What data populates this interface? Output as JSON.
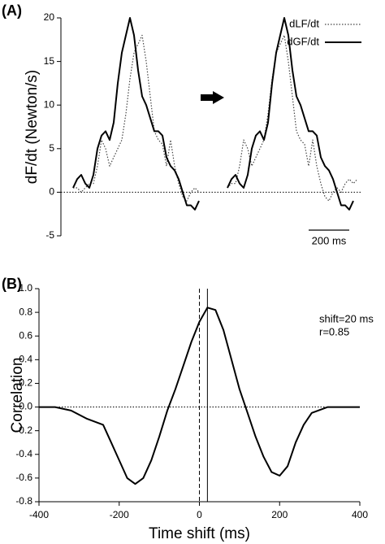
{
  "chart_data": [
    {
      "type": "line",
      "panel_label": "(A)",
      "ylabel": "dF/dt (Newton/s)",
      "xlim": [
        0,
        1480
      ],
      "ylim": [
        -5,
        20
      ],
      "yticks": [
        -5,
        0,
        5,
        10,
        15,
        20
      ],
      "hline": {
        "value": 0,
        "style": "dotted"
      },
      "scale_bar": {
        "value": 200,
        "label": "200 ms"
      },
      "legend": "top-right",
      "x": [
        60,
        80,
        100,
        120,
        140,
        160,
        180,
        200,
        220,
        240,
        260,
        280,
        300,
        320,
        340,
        360,
        380,
        400,
        420,
        440,
        460,
        480,
        500,
        520,
        540,
        560,
        580,
        600,
        620,
        640,
        660,
        680,
        700,
        720,
        740,
        760,
        780,
        800,
        820,
        840,
        860,
        880,
        900,
        920,
        940,
        960,
        980,
        1000,
        1020,
        1040,
        1060,
        1080,
        1100,
        1120,
        1140,
        1160,
        1180,
        1200,
        1220,
        1240,
        1260,
        1280,
        1300,
        1320,
        1340,
        1360,
        1380,
        1400,
        1420,
        1440,
        1460
      ],
      "series": [
        {
          "name": "dLF/dt",
          "color": "#444444",
          "style": "dotted",
          "values": [
            0.5,
            0.5,
            0,
            0.5,
            1,
            1,
            3,
            6,
            5,
            3,
            4,
            5,
            6,
            9,
            13,
            16,
            17,
            18,
            15,
            11,
            7,
            6,
            5.5,
            3,
            6,
            3,
            1,
            -0.5,
            -1,
            0,
            0.5,
            0,
            null,
            null,
            null,
            null,
            null,
            null,
            0.5,
            1,
            1,
            3,
            6,
            5,
            3,
            4,
            5,
            6,
            9,
            13,
            16,
            17,
            18,
            15,
            11,
            7,
            6,
            5.5,
            3,
            6,
            3,
            1,
            -0.5,
            -1,
            0,
            0.5,
            0,
            1,
            1.5,
            1,
            1.5
          ]
        },
        {
          "name": "dGF/dt",
          "color": "#000000",
          "style": "solid",
          "values": [
            0.5,
            1.5,
            2,
            1,
            0.5,
            2,
            5,
            6.5,
            7,
            6,
            8,
            12.5,
            16,
            18,
            20,
            18,
            14,
            11,
            10,
            8.5,
            7,
            7,
            6.5,
            4,
            3,
            2.5,
            1.5,
            0,
            -1.5,
            -1.5,
            -2,
            -1,
            null,
            null,
            null,
            null,
            null,
            null,
            0.5,
            1.5,
            2,
            1,
            0.5,
            2,
            5,
            6.5,
            7,
            6,
            8,
            12.5,
            16,
            18,
            20,
            18,
            14,
            11,
            10,
            8.5,
            7,
            7,
            6.5,
            4,
            3,
            2.5,
            1.5,
            0,
            -1.5,
            -1.5,
            -2,
            -1,
            null
          ]
        }
      ]
    },
    {
      "type": "line",
      "panel_label": "(B)",
      "ylabel": "Correlation",
      "xlabel": "Time shift (ms)",
      "xlim": [
        -400,
        400
      ],
      "xticks": [
        -400,
        -200,
        0,
        200,
        400
      ],
      "ylim": [
        -0.8,
        1.0
      ],
      "yticks": [
        {
          "value": 1,
          "label": "1.0"
        },
        0.8,
        0.6,
        0.4,
        0.2,
        {
          "value": 0,
          "label": "0.0"
        },
        -0.2,
        -0.4,
        -0.6,
        -0.8
      ],
      "hline": {
        "value": 0,
        "style": "dotted"
      },
      "vlines": [
        {
          "value": 0,
          "style": "dashed"
        },
        {
          "value": 20,
          "style": "solid"
        }
      ],
      "annotations": [
        "shift=20 ms",
        "r=0.85"
      ],
      "x": [
        -400,
        -360,
        -320,
        -280,
        -240,
        -220,
        -200,
        -180,
        -160,
        -140,
        -120,
        -100,
        -80,
        -60,
        -40,
        -20,
        0,
        20,
        40,
        60,
        80,
        100,
        120,
        140,
        160,
        180,
        200,
        220,
        240,
        260,
        280,
        320,
        360,
        400
      ],
      "series": [
        {
          "color": "#000000",
          "style": "solid",
          "values": [
            0,
            0,
            -0.03,
            -0.1,
            -0.15,
            -0.3,
            -0.45,
            -0.6,
            -0.65,
            -0.6,
            -0.45,
            -0.25,
            -0.03,
            0.15,
            0.35,
            0.55,
            0.72,
            0.84,
            0.82,
            0.65,
            0.4,
            0.15,
            -0.05,
            -0.25,
            -0.42,
            -0.55,
            -0.58,
            -0.5,
            -0.3,
            -0.15,
            -0.05,
            0,
            0,
            0
          ]
        }
      ]
    }
  ]
}
